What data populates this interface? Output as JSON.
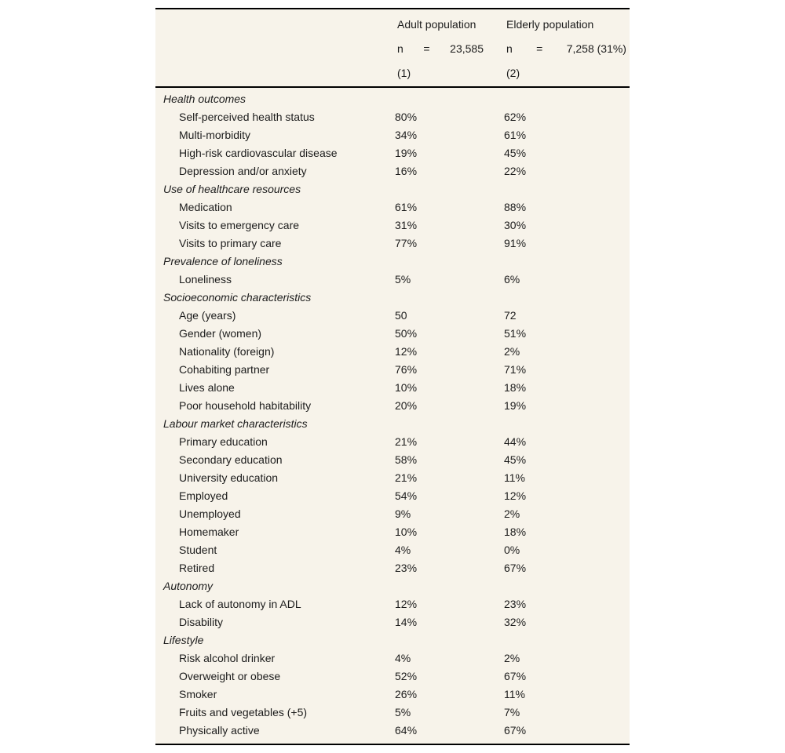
{
  "table": {
    "header": {
      "adult": {
        "title": "Adult population",
        "n_label": "n",
        "equals": "=",
        "n_value": "23,585",
        "note": "(1)"
      },
      "elderly": {
        "title": "Elderly population",
        "n_label": "n",
        "equals": "=",
        "n_value": "7,258 (31%)",
        "note": "(2)"
      }
    },
    "sections": [
      {
        "label": "Health outcomes",
        "rows": [
          {
            "label": "Self-perceived health status",
            "adult": "80%",
            "elderly": "62%"
          },
          {
            "label": "Multi-morbidity",
            "adult": "34%",
            "elderly": "61%"
          },
          {
            "label": "High-risk cardiovascular disease",
            "adult": "19%",
            "elderly": "45%"
          },
          {
            "label": "Depression and/or anxiety",
            "adult": "16%",
            "elderly": "22%"
          }
        ]
      },
      {
        "label": "Use of healthcare resources",
        "rows": [
          {
            "label": "Medication",
            "adult": "61%",
            "elderly": "88%"
          },
          {
            "label": "Visits to emergency care",
            "adult": "31%",
            "elderly": "30%"
          },
          {
            "label": "Visits to primary care",
            "adult": "77%",
            "elderly": "91%"
          }
        ]
      },
      {
        "label": "Prevalence of loneliness",
        "rows": [
          {
            "label": "Loneliness",
            "adult": "5%",
            "elderly": "6%"
          }
        ]
      },
      {
        "label": "Socioeconomic characteristics",
        "rows": [
          {
            "label": "Age (years)",
            "adult": "50",
            "elderly": "72"
          },
          {
            "label": "Gender (women)",
            "adult": "50%",
            "elderly": "51%"
          },
          {
            "label": "Nationality (foreign)",
            "adult": "12%",
            "elderly": "2%"
          },
          {
            "label": "Cohabiting partner",
            "adult": "76%",
            "elderly": "71%"
          },
          {
            "label": "Lives alone",
            "adult": "10%",
            "elderly": "18%"
          },
          {
            "label": "Poor household habitability",
            "adult": "20%",
            "elderly": "19%"
          }
        ]
      },
      {
        "label": "Labour market characteristics",
        "rows": [
          {
            "label": "Primary education",
            "adult": "21%",
            "elderly": "44%"
          },
          {
            "label": "Secondary education",
            "adult": "58%",
            "elderly": "45%"
          },
          {
            "label": "University education",
            "adult": "21%",
            "elderly": "11%"
          },
          {
            "label": "Employed",
            "adult": "54%",
            "elderly": "12%"
          },
          {
            "label": "Unemployed",
            "adult": "9%",
            "elderly": "2%"
          },
          {
            "label": "Homemaker",
            "adult": "10%",
            "elderly": "18%"
          },
          {
            "label": "Student",
            "adult": "4%",
            "elderly": "0%"
          },
          {
            "label": "Retired",
            "adult": "23%",
            "elderly": "67%"
          }
        ]
      },
      {
        "label": "Autonomy",
        "rows": [
          {
            "label": "Lack of autonomy in ADL",
            "adult": "12%",
            "elderly": "23%"
          },
          {
            "label": "Disability",
            "adult": "14%",
            "elderly": "32%"
          }
        ]
      },
      {
        "label": "Lifestyle",
        "rows": [
          {
            "label": "Risk alcohol drinker",
            "adult": "4%",
            "elderly": "2%"
          },
          {
            "label": "Overweight or obese",
            "adult": "52%",
            "elderly": "67%"
          },
          {
            "label": "Smoker",
            "adult": "26%",
            "elderly": "11%"
          },
          {
            "label": "Fruits and vegetables (+5)",
            "adult": "5%",
            "elderly": "7%"
          },
          {
            "label": "Physically active",
            "adult": "64%",
            "elderly": "67%"
          }
        ]
      }
    ]
  },
  "colors": {
    "page_background": "#ffffff",
    "table_background": "#f7f3ea",
    "border": "#000000",
    "text": "#1c1c1c"
  }
}
